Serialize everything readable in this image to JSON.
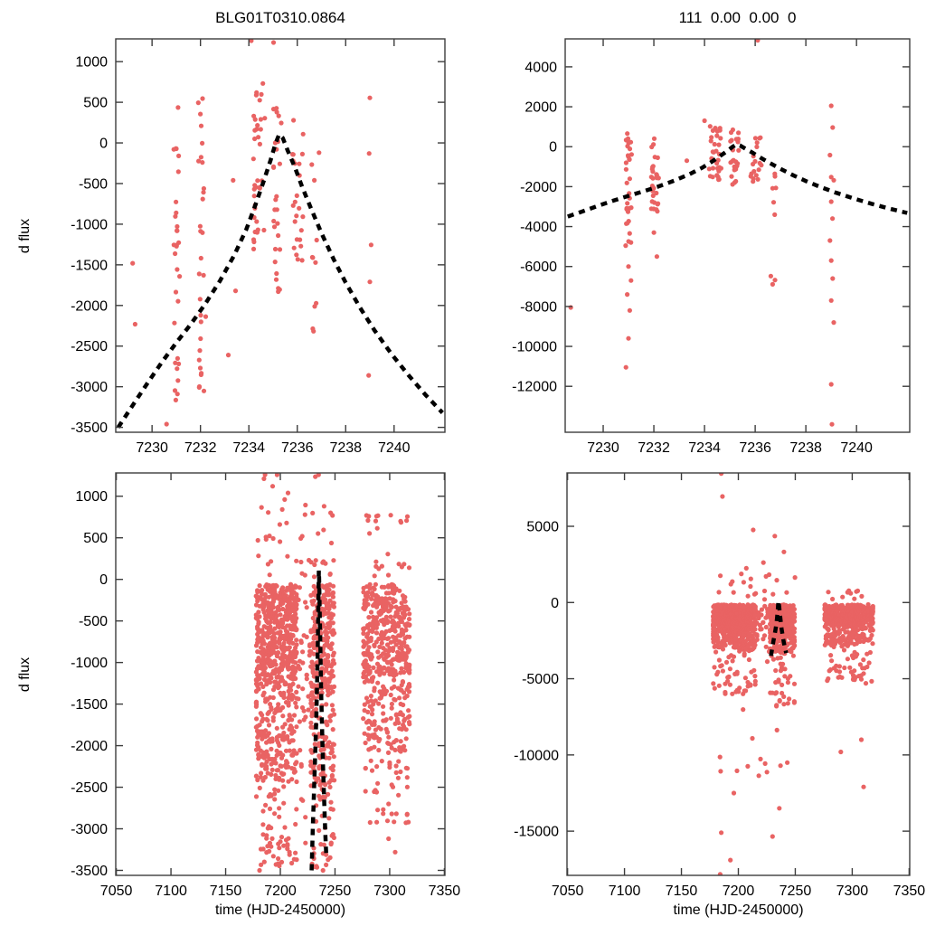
{
  "styles": {
    "point_color": "#e96363",
    "curve_color": "#000000",
    "axis_color": "#3d3d3d",
    "background": "#ffffff"
  },
  "labels": {
    "y_axis": "d flux",
    "x_axis": "time (HJD-2450000)"
  },
  "model_curve": [
    [
      7228.6,
      -3500
    ],
    [
      7229.2,
      -3230
    ],
    [
      7229.8,
      -2960
    ],
    [
      7230.4,
      -2700
    ],
    [
      7231.0,
      -2460
    ],
    [
      7231.6,
      -2230
    ],
    [
      7232.2,
      -1980
    ],
    [
      7232.8,
      -1700
    ],
    [
      7233.4,
      -1380
    ],
    [
      7233.9,
      -1060
    ],
    [
      7234.3,
      -740
    ],
    [
      7234.6,
      -480
    ],
    [
      7234.9,
      -210
    ],
    [
      7235.1,
      -10
    ],
    [
      7235.25,
      105
    ],
    [
      7235.4,
      60
    ],
    [
      7235.6,
      -90
    ],
    [
      7235.9,
      -300
    ],
    [
      7236.2,
      -540
    ],
    [
      7236.6,
      -830
    ],
    [
      7237.0,
      -1110
    ],
    [
      7237.5,
      -1430
    ],
    [
      7238.0,
      -1720
    ],
    [
      7238.6,
      -2030
    ],
    [
      7239.2,
      -2310
    ],
    [
      7239.9,
      -2600
    ],
    [
      7240.6,
      -2860
    ],
    [
      7241.3,
      -3100
    ],
    [
      7242.0,
      -3320
    ]
  ],
  "chart_data": [
    {
      "id": "top-left",
      "type": "scatter",
      "title": "BLG01T0310.0864",
      "ylabel": "d flux",
      "xlabel": "",
      "xlim": [
        7228.5,
        7242.1
      ],
      "ylim": [
        -3560,
        1280
      ],
      "xticks": [
        7230,
        7232,
        7234,
        7236,
        7238,
        7240
      ],
      "yticks": [
        1000,
        500,
        0,
        -500,
        -1000,
        -1500,
        -2000,
        -2500,
        -3000,
        -3500
      ],
      "frame": {
        "l": 128,
        "t": 43,
        "r": 492,
        "b": 478
      },
      "legend": "none",
      "grid": false,
      "clusters": [
        {
          "type": "uniform",
          "seed": 11,
          "n": 30,
          "x": [
            7230.88,
            7231.14
          ],
          "y": [
            -3260,
            520
          ]
        },
        {
          "type": "uniform",
          "seed": 12,
          "n": 30,
          "x": [
            7231.9,
            7232.22
          ],
          "y": [
            -3060,
            770
          ]
        },
        {
          "type": "uniform",
          "seed": 13,
          "n": 36,
          "x": [
            7234.18,
            7234.66
          ],
          "y": [
            -1320,
            800
          ]
        },
        {
          "type": "uniform",
          "seed": 14,
          "n": 28,
          "x": [
            7235.0,
            7235.36
          ],
          "y": [
            -1830,
            540
          ]
        },
        {
          "type": "uniform",
          "seed": 15,
          "n": 24,
          "x": [
            7235.8,
            7236.26
          ],
          "y": [
            -1470,
            370
          ]
        },
        {
          "type": "uniform",
          "seed": 16,
          "n": 10,
          "x": [
            7236.55,
            7236.82
          ],
          "y": [
            -2330,
            -120
          ]
        }
      ],
      "points": [
        [
          7234.1,
          1258
        ],
        [
          7235.02,
          1235
        ],
        [
          7239.0,
          555
        ],
        [
          7238.97,
          -130
        ],
        [
          7239.05,
          -1255
        ],
        [
          7239.0,
          -1710
        ],
        [
          7238.95,
          -2860
        ],
        [
          7233.15,
          -2610
        ],
        [
          7233.45,
          -1820
        ],
        [
          7230.6,
          -3460
        ],
        [
          7233.35,
          -460
        ],
        [
          7236.9,
          -120
        ],
        [
          7229.2,
          -1480
        ],
        [
          7229.3,
          -2230
        ]
      ]
    },
    {
      "id": "top-right",
      "type": "scatter",
      "title": "111  0.00  0.00  0",
      "ylabel": "",
      "xlabel": "",
      "xlim": [
        7228.5,
        7242.1
      ],
      "ylim": [
        -14300,
        5400
      ],
      "xticks": [
        7230,
        7232,
        7234,
        7236,
        7238,
        7240
      ],
      "yticks": [
        4000,
        2000,
        0,
        -2000,
        -4000,
        -6000,
        -8000,
        -10000,
        -12000
      ],
      "frame": {
        "l": 625,
        "t": 43,
        "r": 1006,
        "b": 478
      },
      "legend": "none",
      "grid": false,
      "clusters": [
        {
          "type": "uniform",
          "seed": 21,
          "n": 32,
          "x": [
            7230.88,
            7231.14
          ],
          "y": [
            -5100,
            830
          ]
        },
        {
          "type": "uniform",
          "seed": 22,
          "n": 28,
          "x": [
            7231.9,
            7232.22
          ],
          "y": [
            -3300,
            830
          ]
        },
        {
          "type": "uniform",
          "seed": 23,
          "n": 32,
          "x": [
            7234.18,
            7234.66
          ],
          "y": [
            -1660,
            1060
          ]
        },
        {
          "type": "uniform",
          "seed": 24,
          "n": 26,
          "x": [
            7235.0,
            7235.36
          ],
          "y": [
            -2160,
            960
          ]
        },
        {
          "type": "uniform",
          "seed": 25,
          "n": 18,
          "x": [
            7235.8,
            7236.26
          ],
          "y": [
            -1860,
            630
          ]
        },
        {
          "type": "uniform",
          "seed": 26,
          "n": 9,
          "x": [
            7236.55,
            7236.82
          ],
          "y": [
            -6900,
            -420
          ]
        }
      ],
      "points": [
        [
          7231.0,
          -6000
        ],
        [
          7231.1,
          -6700
        ],
        [
          7230.95,
          -7400
        ],
        [
          7231.05,
          -8200
        ],
        [
          7231.0,
          -9600
        ],
        [
          7230.9,
          -11050
        ],
        [
          7232.0,
          -4300
        ],
        [
          7232.12,
          -5500
        ],
        [
          7239.0,
          2050
        ],
        [
          7239.06,
          960
        ],
        [
          7238.95,
          -420
        ],
        [
          7239.0,
          -1520
        ],
        [
          7239.1,
          -1680
        ],
        [
          7239.0,
          -2750
        ],
        [
          7239.05,
          -3600
        ],
        [
          7238.95,
          -4700
        ],
        [
          7239.0,
          -5700
        ],
        [
          7239.06,
          -6600
        ],
        [
          7239.0,
          -7700
        ],
        [
          7239.1,
          -8800
        ],
        [
          7239.0,
          -11900
        ],
        [
          7239.03,
          -13900
        ],
        [
          7228.72,
          -8050
        ],
        [
          7236.1,
          5330
        ],
        [
          7233.3,
          -700
        ],
        [
          7234.0,
          1300
        ]
      ]
    },
    {
      "id": "bottom-left",
      "type": "scatter",
      "title": "",
      "ylabel": "d flux",
      "xlabel": "time (HJD-2450000)",
      "xlim": [
        7049.5,
        7350.5
      ],
      "ylim": [
        -3560,
        1280
      ],
      "xticks": [
        7050,
        7100,
        7150,
        7200,
        7250,
        7300,
        7350
      ],
      "yticks": [
        1000,
        500,
        0,
        -500,
        -1000,
        -1500,
        -2000,
        -2500,
        -3000,
        -3500
      ],
      "frame": {
        "l": 128,
        "t": 523,
        "r": 492,
        "b": 968
      },
      "legend": "none",
      "grid": false,
      "clusters": [
        {
          "type": "columns",
          "seed": 31,
          "from": 7178.0,
          "to": 7215.5,
          "step": 1.05,
          "jitter": 0.16,
          "per": [
            12,
            26
          ],
          "bands": [
            [
              0.64,
              -1300,
              -60
            ],
            [
              0.27,
              -2420,
              -1300
            ],
            [
              0.09,
              -3480,
              -2420
            ]
          ]
        },
        {
          "type": "columns",
          "seed": 32,
          "from": 7216.5,
          "to": 7227.0,
          "step": 1.3,
          "jitter": 0.2,
          "per": [
            2,
            6
          ],
          "bands": [
            [
              0.6,
              -1300,
              -80
            ],
            [
              0.3,
              -2300,
              -1300
            ],
            [
              0.1,
              -3300,
              -2300
            ]
          ]
        },
        {
          "type": "columns",
          "seed": 33,
          "from": 7228.0,
          "to": 7249.5,
          "step": 0.92,
          "jitter": 0.16,
          "per": [
            10,
            22
          ],
          "bands": [
            [
              0.62,
              -1350,
              -60
            ],
            [
              0.28,
              -2500,
              -1350
            ],
            [
              0.1,
              -3480,
              -2500
            ]
          ]
        },
        {
          "type": "columns",
          "seed": 34,
          "from": 7276.0,
          "to": 7318.0,
          "step": 1.0,
          "jitter": 0.18,
          "per": [
            7,
            17
          ],
          "bands": [
            [
              0.68,
              -1150,
              -60
            ],
            [
              0.24,
              -2100,
              -1150
            ],
            [
              0.08,
              -2950,
              -2100
            ]
          ]
        },
        {
          "type": "uniform",
          "seed": 35,
          "n": 40,
          "x": [
            7179,
            7249
          ],
          "y": [
            30,
            900
          ]
        },
        {
          "type": "uniform",
          "seed": 36,
          "n": 22,
          "x": [
            7277,
            7318
          ],
          "y": [
            30,
            800
          ]
        }
      ],
      "points": [
        [
          7185,
          1210
        ],
        [
          7193,
          1120
        ],
        [
          7204,
          960
        ],
        [
          7197,
          1258
        ],
        [
          7232,
          1235
        ],
        [
          7207,
          1040
        ],
        [
          7181,
          -3500
        ],
        [
          7196,
          -3430
        ],
        [
          7233,
          -3450
        ],
        [
          7239,
          -3500
        ],
        [
          7305,
          -3280
        ],
        [
          7299,
          -3120
        ],
        [
          7240,
          880
        ],
        [
          7246,
          800
        ],
        [
          7310,
          700
        ],
        [
          7288,
          760
        ],
        [
          7186,
          1259
        ],
        [
          7235,
          1258
        ]
      ]
    },
    {
      "id": "bottom-right",
      "type": "scatter",
      "title": "",
      "ylabel": "",
      "xlabel": "time (HJD-2450000)",
      "xlim": [
        7049.5,
        7350.5
      ],
      "ylim": [
        -17900,
        8500
      ],
      "xticks": [
        7050,
        7100,
        7150,
        7200,
        7250,
        7300,
        7350
      ],
      "yticks": [
        5000,
        0,
        -5000,
        -10000,
        -15000
      ],
      "frame": {
        "l": 627,
        "t": 523,
        "r": 1006,
        "b": 968
      },
      "legend": "none",
      "grid": false,
      "clusters": [
        {
          "type": "columns",
          "seed": 41,
          "from": 7178.0,
          "to": 7215.5,
          "step": 1.05,
          "jitter": 0.16,
          "per": [
            11,
            24
          ],
          "bands": [
            [
              0.66,
              -1800,
              -140
            ],
            [
              0.25,
              -3100,
              -1800
            ],
            [
              0.09,
              -6200,
              -3100
            ]
          ]
        },
        {
          "type": "columns",
          "seed": 42,
          "from": 7216.5,
          "to": 7227.0,
          "step": 1.3,
          "jitter": 0.2,
          "per": [
            2,
            5
          ],
          "bands": [
            [
              0.6,
              -1800,
              -150
            ],
            [
              0.3,
              -3000,
              -1800
            ],
            [
              0.1,
              -5000,
              -3000
            ]
          ]
        },
        {
          "type": "columns",
          "seed": 43,
          "from": 7228.0,
          "to": 7249.5,
          "step": 0.92,
          "jitter": 0.16,
          "per": [
            9,
            20
          ],
          "bands": [
            [
              0.64,
              -1900,
              -140
            ],
            [
              0.26,
              -3300,
              -1900
            ],
            [
              0.1,
              -6800,
              -3300
            ]
          ]
        },
        {
          "type": "columns",
          "seed": 44,
          "from": 7276.0,
          "to": 7318.0,
          "step": 1.0,
          "jitter": 0.18,
          "per": [
            7,
            16
          ],
          "bands": [
            [
              0.7,
              -1500,
              -130
            ],
            [
              0.22,
              -2800,
              -1500
            ],
            [
              0.08,
              -5200,
              -2800
            ]
          ]
        },
        {
          "type": "uniform",
          "seed": 45,
          "n": 12,
          "x": [
            7182,
            7248
          ],
          "y": [
            -6500,
            -11500
          ]
        },
        {
          "type": "uniform",
          "seed": 46,
          "n": 20,
          "x": [
            7180,
            7250
          ],
          "y": [
            200,
            1900
          ]
        },
        {
          "type": "uniform",
          "seed": 47,
          "n": 10,
          "x": [
            7278,
            7316
          ],
          "y": [
            150,
            1100
          ]
        }
      ],
      "points": [
        [
          7185,
          8460
        ],
        [
          7186,
          6960
        ],
        [
          7213,
          4760
        ],
        [
          7232,
          4360
        ],
        [
          7222,
          2620
        ],
        [
          7240,
          3320
        ],
        [
          7185,
          -15100
        ],
        [
          7193,
          -16900
        ],
        [
          7184,
          -17830
        ],
        [
          7230,
          -15350
        ],
        [
          7236,
          -13500
        ],
        [
          7290,
          -9800
        ],
        [
          7310,
          -12100
        ],
        [
          7308,
          -9000
        ],
        [
          7312,
          -5300
        ],
        [
          7207,
          2250
        ],
        [
          7196,
          -12500
        ],
        [
          7243,
          -10500
        ]
      ]
    }
  ]
}
